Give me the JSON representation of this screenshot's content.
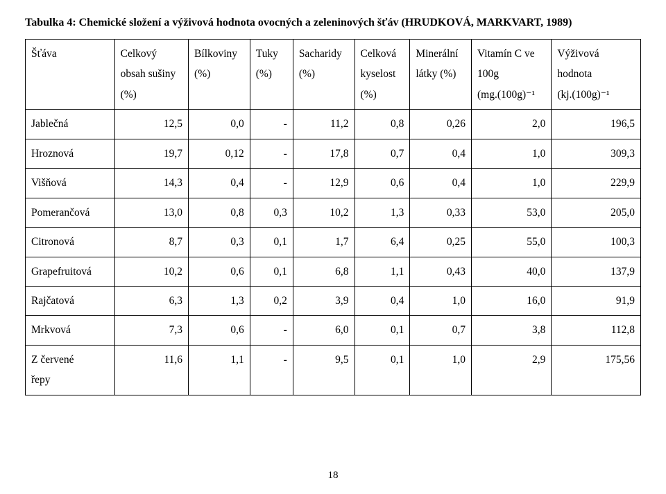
{
  "title": "Tabulka 4: Chemické složení a výživová hodnota ovocných a zeleninových šťáv (HRUDKOVÁ, MARKVART, 1989)",
  "page_number": "18",
  "table": {
    "type": "table",
    "columns": [
      {
        "key": "stava",
        "lines": [
          "Šťáva",
          "",
          ""
        ],
        "align": "left"
      },
      {
        "key": "celkovy",
        "lines": [
          "Celkový",
          "obsah sušiny",
          "(%)"
        ],
        "align": "right"
      },
      {
        "key": "bilkoviny",
        "lines": [
          "Bílkoviny",
          "(%)",
          ""
        ],
        "align": "right"
      },
      {
        "key": "tuky",
        "lines": [
          "Tuky",
          "(%)",
          ""
        ],
        "align": "right"
      },
      {
        "key": "sacharidy",
        "lines": [
          "Sacharidy",
          "(%)",
          ""
        ],
        "align": "right"
      },
      {
        "key": "kyselost",
        "lines": [
          "Celková",
          "kyselost",
          "(%)"
        ],
        "align": "right"
      },
      {
        "key": "mineralni",
        "lines": [
          "Minerální",
          "látky (%)",
          ""
        ],
        "align": "right"
      },
      {
        "key": "vitaminc",
        "lines": [
          "Vitamín C ve",
          "100g",
          "(mg.(100g)⁻¹"
        ],
        "align": "right"
      },
      {
        "key": "vyzivova",
        "lines": [
          "Výživová",
          "hodnota",
          "(kj.(100g)⁻¹"
        ],
        "align": "right"
      }
    ],
    "rows": [
      {
        "label": "Jablečná",
        "vals": [
          "12,5",
          "0,0",
          "-",
          "11,2",
          "0,8",
          "0,26",
          "2,0",
          "196,5"
        ]
      },
      {
        "label": "Hroznová",
        "vals": [
          "19,7",
          "0,12",
          "-",
          "17,8",
          "0,7",
          "0,4",
          "1,0",
          "309,3"
        ]
      },
      {
        "label": "Višňová",
        "vals": [
          "14,3",
          "0,4",
          "-",
          "12,9",
          "0,6",
          "0,4",
          "1,0",
          "229,9"
        ]
      },
      {
        "label": "Pomerančová",
        "vals": [
          "13,0",
          "0,8",
          "0,3",
          "10,2",
          "1,3",
          "0,33",
          "53,0",
          "205,0"
        ]
      },
      {
        "label": "Citronová",
        "vals": [
          "8,7",
          "0,3",
          "0,1",
          "1,7",
          "6,4",
          "0,25",
          "55,0",
          "100,3"
        ]
      },
      {
        "label": "Grapefruitová",
        "vals": [
          "10,2",
          "0,6",
          "0,1",
          "6,8",
          "1,1",
          "0,43",
          "40,0",
          "137,9"
        ]
      },
      {
        "label": "Rajčatová",
        "vals": [
          "6,3",
          "1,3",
          "0,2",
          "3,9",
          "0,4",
          "1,0",
          "16,0",
          "91,9"
        ]
      },
      {
        "label": "Mrkvová",
        "vals": [
          "7,3",
          "0,6",
          "-",
          "6,0",
          "0,1",
          "0,7",
          "3,8",
          "112,8"
        ]
      },
      {
        "label": "Z červené\nřepy",
        "vals": [
          "11,6",
          "1,1",
          "-",
          "9,5",
          "0,1",
          "1,0",
          "2,9",
          "175,56"
        ]
      }
    ]
  },
  "style": {
    "background_color": "#ffffff",
    "text_color": "#000000",
    "border_color": "#000000",
    "font_family": "Times New Roman",
    "title_fontsize": 16,
    "cell_fontsize": 15.5,
    "line_height": 1.9
  }
}
